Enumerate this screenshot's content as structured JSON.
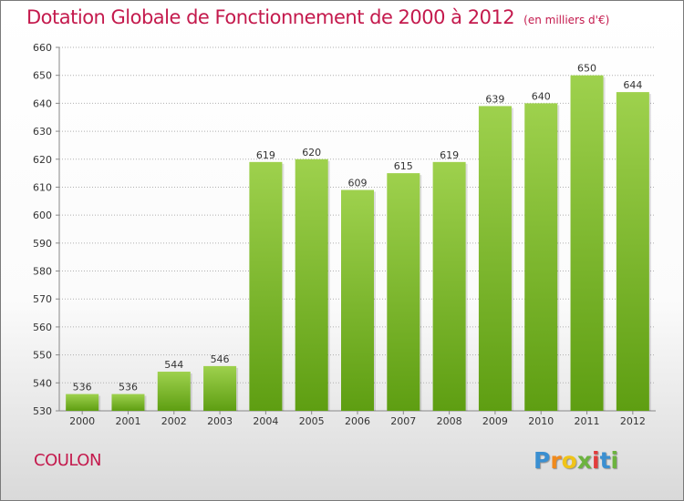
{
  "title": "Dotation Globale de Fonctionnement de 2000 à 2012",
  "subtitle": "(en milliers d'€)",
  "commune": "COULON",
  "logo": {
    "letters": [
      "P",
      "r",
      "o",
      "x",
      "i",
      "t",
      "i"
    ],
    "colors": [
      "#3a8fd1",
      "#f08a1c",
      "#f0c419",
      "#6cb33f",
      "#e23c3c",
      "#3a8fd1",
      "#6cb33f"
    ]
  },
  "colors": {
    "title": "#c41a4d",
    "bar_top": "#9ed14d",
    "bar_bottom": "#5e9e12",
    "grid": "#b0b0b0"
  },
  "chart_data": {
    "type": "bar",
    "title": "Dotation Globale de Fonctionnement de 2000 à 2012",
    "subtitle": "(en milliers d'€)",
    "categories": [
      "2000",
      "2001",
      "2002",
      "2003",
      "2004",
      "2005",
      "2006",
      "2007",
      "2008",
      "2009",
      "2010",
      "2011",
      "2012"
    ],
    "values": [
      536,
      536,
      544,
      546,
      619,
      620,
      609,
      615,
      619,
      639,
      640,
      650,
      644
    ],
    "ylim": [
      530,
      660
    ],
    "yticks": [
      530,
      540,
      550,
      560,
      570,
      580,
      590,
      600,
      610,
      620,
      630,
      640,
      650,
      660
    ],
    "grid": true,
    "xlabel": "",
    "ylabel": ""
  }
}
